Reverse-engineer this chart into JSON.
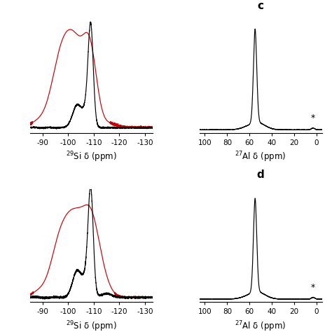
{
  "si_xlim": [
    -85,
    -133
  ],
  "si_xticks": [
    -90,
    -100,
    -110,
    -120,
    -130
  ],
  "si_xlabel": "$^{29}$Si δ (ppm)",
  "al_xlim": [
    105,
    -5
  ],
  "al_xticks": [
    100,
    80,
    60,
    40,
    20,
    0
  ],
  "al_xlabel": "$^{27}$Al δ (ppm)",
  "red_color": "#cc0000",
  "black_color": "#000000",
  "background": "#ffffff",
  "label_fontsize": 8.5,
  "tick_fontsize": 7.5,
  "panel_label_fontsize": 11,
  "star_fontsize": 9
}
